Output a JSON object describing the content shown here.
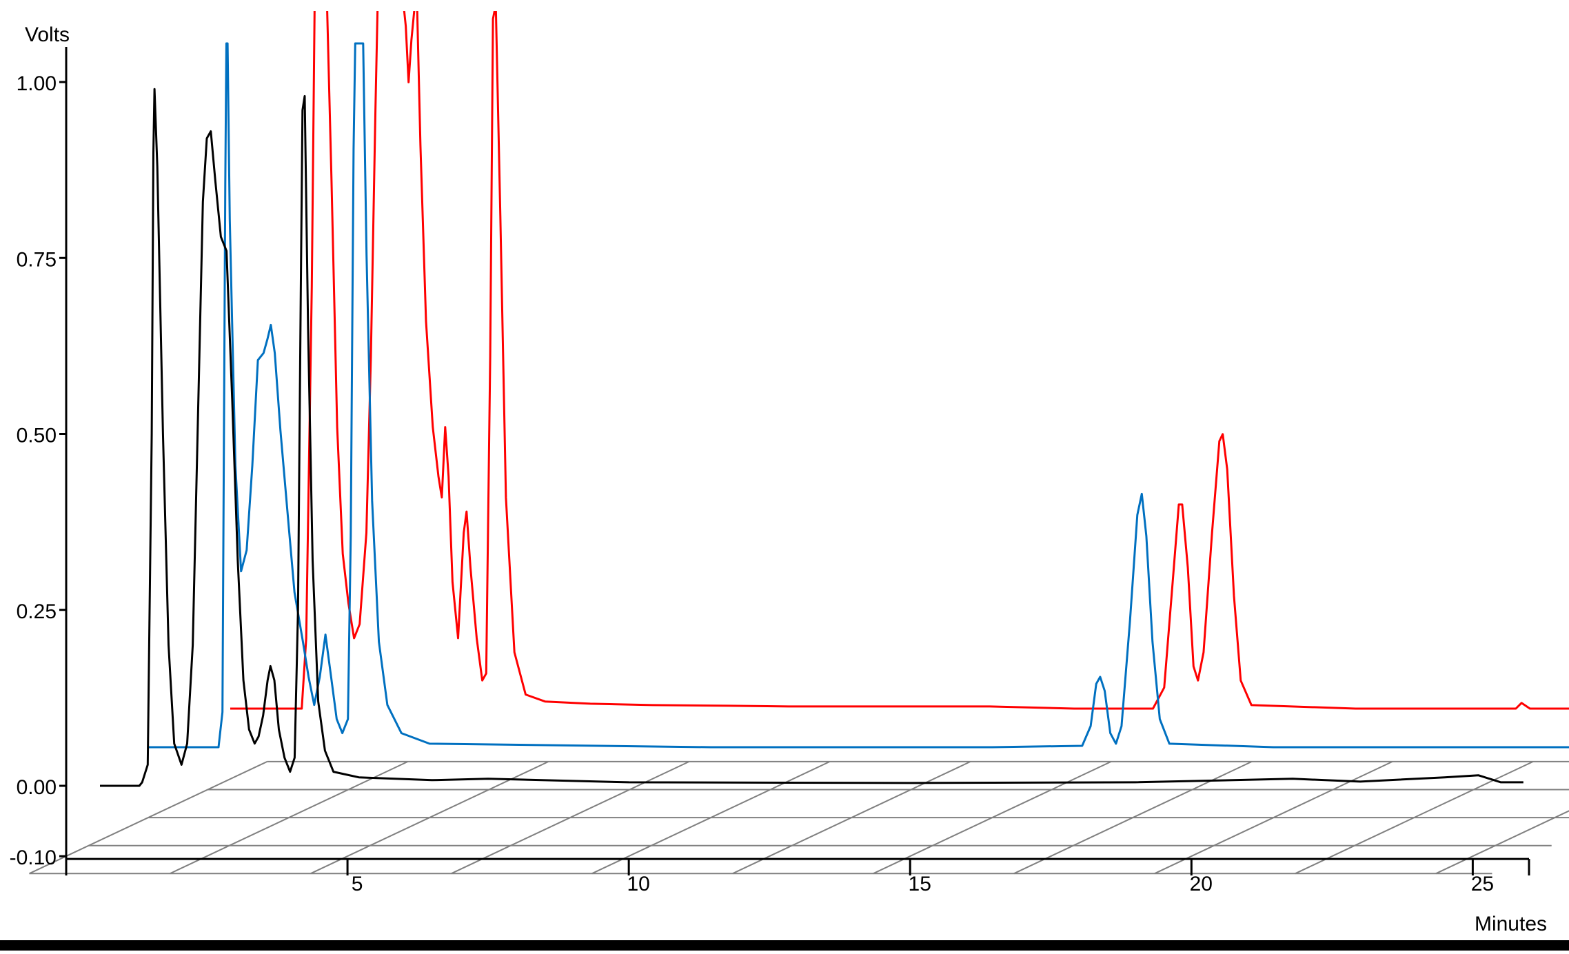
{
  "chart_data": {
    "type": "line",
    "title": "",
    "xlabel": "Minutes",
    "ylabel": "Volts",
    "xlim": [
      0,
      26
    ],
    "ylim": [
      -0.1,
      1.05
    ],
    "x_ticks": [
      {
        "value": 5,
        "label": "5"
      },
      {
        "value": 10,
        "label": "10"
      },
      {
        "value": 15,
        "label": "15"
      },
      {
        "value": 20,
        "label": "20"
      },
      {
        "value": 25,
        "label": "25"
      }
    ],
    "y_ticks": [
      {
        "value": -0.1,
        "label": "-0.10"
      },
      {
        "value": 0.0,
        "label": "0.00"
      },
      {
        "value": 0.25,
        "label": "0.25"
      },
      {
        "value": 0.5,
        "label": "0.50"
      },
      {
        "value": 0.75,
        "label": "0.75"
      },
      {
        "value": 1.0,
        "label": "1.00"
      }
    ],
    "grid": true,
    "view": "3d-stacked",
    "series": [
      {
        "color": "#000000",
        "points": [
          [
            0.6,
            0.0
          ],
          [
            1.3,
            0.0
          ],
          [
            1.35,
            0.005
          ],
          [
            1.45,
            0.03
          ],
          [
            1.52,
            0.5
          ],
          [
            1.55,
            0.9
          ],
          [
            1.57,
            0.99
          ],
          [
            1.62,
            0.88
          ],
          [
            1.72,
            0.5
          ],
          [
            1.82,
            0.2
          ],
          [
            1.92,
            0.06
          ],
          [
            2.05,
            0.03
          ],
          [
            2.15,
            0.06
          ],
          [
            2.25,
            0.2
          ],
          [
            2.35,
            0.55
          ],
          [
            2.43,
            0.83
          ],
          [
            2.5,
            0.92
          ],
          [
            2.57,
            0.93
          ],
          [
            2.65,
            0.86
          ],
          [
            2.75,
            0.78
          ],
          [
            2.85,
            0.76
          ],
          [
            2.95,
            0.55
          ],
          [
            3.05,
            0.32
          ],
          [
            3.15,
            0.15
          ],
          [
            3.25,
            0.08
          ],
          [
            3.35,
            0.06
          ],
          [
            3.42,
            0.07
          ],
          [
            3.5,
            0.1
          ],
          [
            3.58,
            0.15
          ],
          [
            3.63,
            0.17
          ],
          [
            3.7,
            0.15
          ],
          [
            3.78,
            0.08
          ],
          [
            3.88,
            0.04
          ],
          [
            3.98,
            0.02
          ],
          [
            4.06,
            0.04
          ],
          [
            4.12,
            0.25
          ],
          [
            4.17,
            0.7
          ],
          [
            4.2,
            0.96
          ],
          [
            4.24,
            0.98
          ],
          [
            4.3,
            0.65
          ],
          [
            4.38,
            0.32
          ],
          [
            4.48,
            0.12
          ],
          [
            4.6,
            0.05
          ],
          [
            4.75,
            0.02
          ],
          [
            5.2,
            0.012
          ],
          [
            6.5,
            0.008
          ],
          [
            7.5,
            0.01
          ],
          [
            10,
            0.005
          ],
          [
            15,
            0.004
          ],
          [
            19,
            0.005
          ],
          [
            21.8,
            0.01
          ],
          [
            23,
            0.006
          ],
          [
            24.5,
            0.012
          ],
          [
            25.1,
            0.015
          ],
          [
            25.5,
            0.005
          ],
          [
            25.9,
            0.005
          ]
        ]
      },
      {
        "color": "#0070C0",
        "points": [
          [
            0.0,
            0.0
          ],
          [
            1.25,
            0.0
          ],
          [
            1.32,
            0.05
          ],
          [
            1.37,
            0.8
          ],
          [
            1.39,
            1.0
          ],
          [
            1.41,
            1.0
          ],
          [
            1.45,
            0.75
          ],
          [
            1.55,
            0.4
          ],
          [
            1.65,
            0.25
          ],
          [
            1.75,
            0.28
          ],
          [
            1.85,
            0.4
          ],
          [
            1.95,
            0.55
          ],
          [
            2.05,
            0.56
          ],
          [
            2.12,
            0.58
          ],
          [
            2.18,
            0.6
          ],
          [
            2.25,
            0.56
          ],
          [
            2.35,
            0.45
          ],
          [
            2.48,
            0.33
          ],
          [
            2.6,
            0.22
          ],
          [
            2.75,
            0.15
          ],
          [
            2.85,
            0.1
          ],
          [
            2.95,
            0.06
          ],
          [
            3.05,
            0.1
          ],
          [
            3.15,
            0.16
          ],
          [
            3.25,
            0.1
          ],
          [
            3.35,
            0.04
          ],
          [
            3.45,
            0.02
          ],
          [
            3.55,
            0.04
          ],
          [
            3.6,
            0.3
          ],
          [
            3.65,
            0.85
          ],
          [
            3.68,
            1.0
          ],
          [
            3.82,
            1.0
          ],
          [
            3.88,
            0.7
          ],
          [
            3.98,
            0.35
          ],
          [
            4.1,
            0.15
          ],
          [
            4.25,
            0.06
          ],
          [
            4.5,
            0.02
          ],
          [
            5.0,
            0.005
          ],
          [
            10,
            0.0
          ],
          [
            15,
            0.0
          ],
          [
            16.6,
            0.002
          ],
          [
            16.75,
            0.03
          ],
          [
            16.85,
            0.09
          ],
          [
            16.92,
            0.1
          ],
          [
            17.0,
            0.08
          ],
          [
            17.1,
            0.02
          ],
          [
            17.2,
            0.005
          ],
          [
            17.3,
            0.03
          ],
          [
            17.45,
            0.18
          ],
          [
            17.58,
            0.33
          ],
          [
            17.66,
            0.36
          ],
          [
            17.74,
            0.3
          ],
          [
            17.85,
            0.15
          ],
          [
            17.98,
            0.04
          ],
          [
            18.15,
            0.005
          ],
          [
            20,
            0.0
          ],
          [
            25.8,
            0.0
          ]
        ]
      },
      {
        "color": "#FF0000",
        "points": [
          [
            0.0,
            0.0
          ],
          [
            1.27,
            0.0
          ],
          [
            1.35,
            0.1
          ],
          [
            1.45,
            0.6
          ],
          [
            1.5,
            1.0
          ],
          [
            1.72,
            1.0
          ],
          [
            1.8,
            0.75
          ],
          [
            1.9,
            0.4
          ],
          [
            2.0,
            0.22
          ],
          [
            2.1,
            0.15
          ],
          [
            2.2,
            0.1
          ],
          [
            2.3,
            0.12
          ],
          [
            2.42,
            0.25
          ],
          [
            2.5,
            0.5
          ],
          [
            2.58,
            0.85
          ],
          [
            2.62,
            1.0
          ],
          [
            3.08,
            1.0
          ],
          [
            3.12,
            0.97
          ],
          [
            3.17,
            0.89
          ],
          [
            3.22,
            0.95
          ],
          [
            3.28,
            1.0
          ],
          [
            3.32,
            1.0
          ],
          [
            3.38,
            0.8
          ],
          [
            3.48,
            0.55
          ],
          [
            3.6,
            0.4
          ],
          [
            3.7,
            0.33
          ],
          [
            3.76,
            0.3
          ],
          [
            3.82,
            0.4
          ],
          [
            3.88,
            0.33
          ],
          [
            3.95,
            0.18
          ],
          [
            4.05,
            0.1
          ],
          [
            4.15,
            0.25
          ],
          [
            4.2,
            0.28
          ],
          [
            4.27,
            0.2
          ],
          [
            4.38,
            0.1
          ],
          [
            4.48,
            0.04
          ],
          [
            4.55,
            0.05
          ],
          [
            4.62,
            0.5
          ],
          [
            4.67,
            0.98
          ],
          [
            4.72,
            1.0
          ],
          [
            4.8,
            0.7
          ],
          [
            4.9,
            0.3
          ],
          [
            5.05,
            0.08
          ],
          [
            5.25,
            0.02
          ],
          [
            5.6,
            0.01
          ],
          [
            6.4,
            0.007
          ],
          [
            7.5,
            0.005
          ],
          [
            8.9,
            0.004
          ],
          [
            10,
            0.003
          ],
          [
            13.5,
            0.003
          ],
          [
            15,
            0.0
          ],
          [
            16.4,
            0.0
          ],
          [
            16.6,
            0.03
          ],
          [
            16.75,
            0.18
          ],
          [
            16.86,
            0.29
          ],
          [
            16.92,
            0.29
          ],
          [
            17.02,
            0.2
          ],
          [
            17.12,
            0.06
          ],
          [
            17.2,
            0.04
          ],
          [
            17.3,
            0.08
          ],
          [
            17.45,
            0.25
          ],
          [
            17.58,
            0.38
          ],
          [
            17.64,
            0.39
          ],
          [
            17.72,
            0.34
          ],
          [
            17.84,
            0.16
          ],
          [
            17.96,
            0.04
          ],
          [
            18.15,
            0.005
          ],
          [
            20,
            0.0
          ],
          [
            22.85,
            0.0
          ],
          [
            22.95,
            0.008
          ],
          [
            23.1,
            0.0
          ],
          [
            25.4,
            0.0
          ]
        ]
      }
    ]
  }
}
